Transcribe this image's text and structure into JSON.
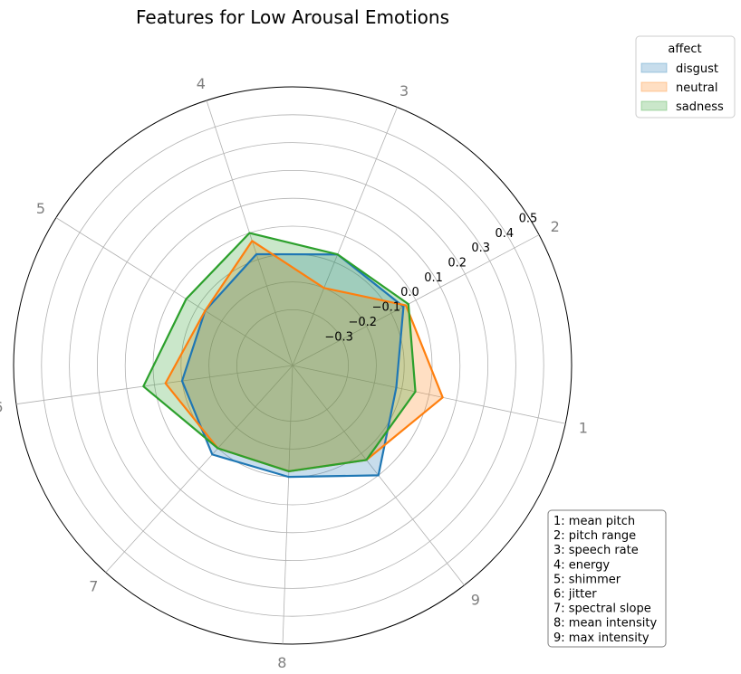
{
  "chart_data": {
    "type": "radar",
    "title": "Features for Low Arousal Emotions",
    "axes": [
      "1",
      "2",
      "3",
      "4",
      "5",
      "6",
      "7",
      "8",
      "9"
    ],
    "rlim": [
      -0.5,
      0.5
    ],
    "r_ticks": [
      "−0.3",
      "−0.2",
      "−0.1",
      "0.0",
      "0.1",
      "0.2",
      "0.3",
      "0.4",
      "0.5"
    ],
    "r_tick_values": [
      -0.3,
      -0.2,
      -0.1,
      0.0,
      0.1,
      0.2,
      0.3,
      0.4,
      0.5
    ],
    "grid": true,
    "legend": {
      "title": "affect",
      "placement": "top-right",
      "entries": [
        "disgust",
        "neutral",
        "sadness"
      ]
    },
    "series": [
      {
        "name": "disgust",
        "color": "#1f77b4",
        "values": [
          -0.12,
          -0.05,
          -0.07,
          -0.08,
          -0.13,
          -0.1,
          -0.07,
          -0.1,
          0.0
        ]
      },
      {
        "name": "neutral",
        "color": "#ff7f0e",
        "values": [
          0.05,
          -0.04,
          -0.2,
          -0.03,
          -0.13,
          -0.04,
          -0.1,
          -0.12,
          -0.07
        ]
      },
      {
        "name": "sadness",
        "color": "#2ca02c",
        "values": [
          -0.05,
          -0.03,
          -0.07,
          0.0,
          -0.05,
          0.04,
          -0.1,
          -0.12,
          -0.07
        ]
      }
    ],
    "feature_key": [
      "1: mean pitch",
      "2: pitch range",
      "3: speech rate",
      "4: energy",
      "5: shimmer",
      "6: jitter",
      "7: spectral slope",
      "8: mean intensity",
      "9: max intensity"
    ]
  }
}
